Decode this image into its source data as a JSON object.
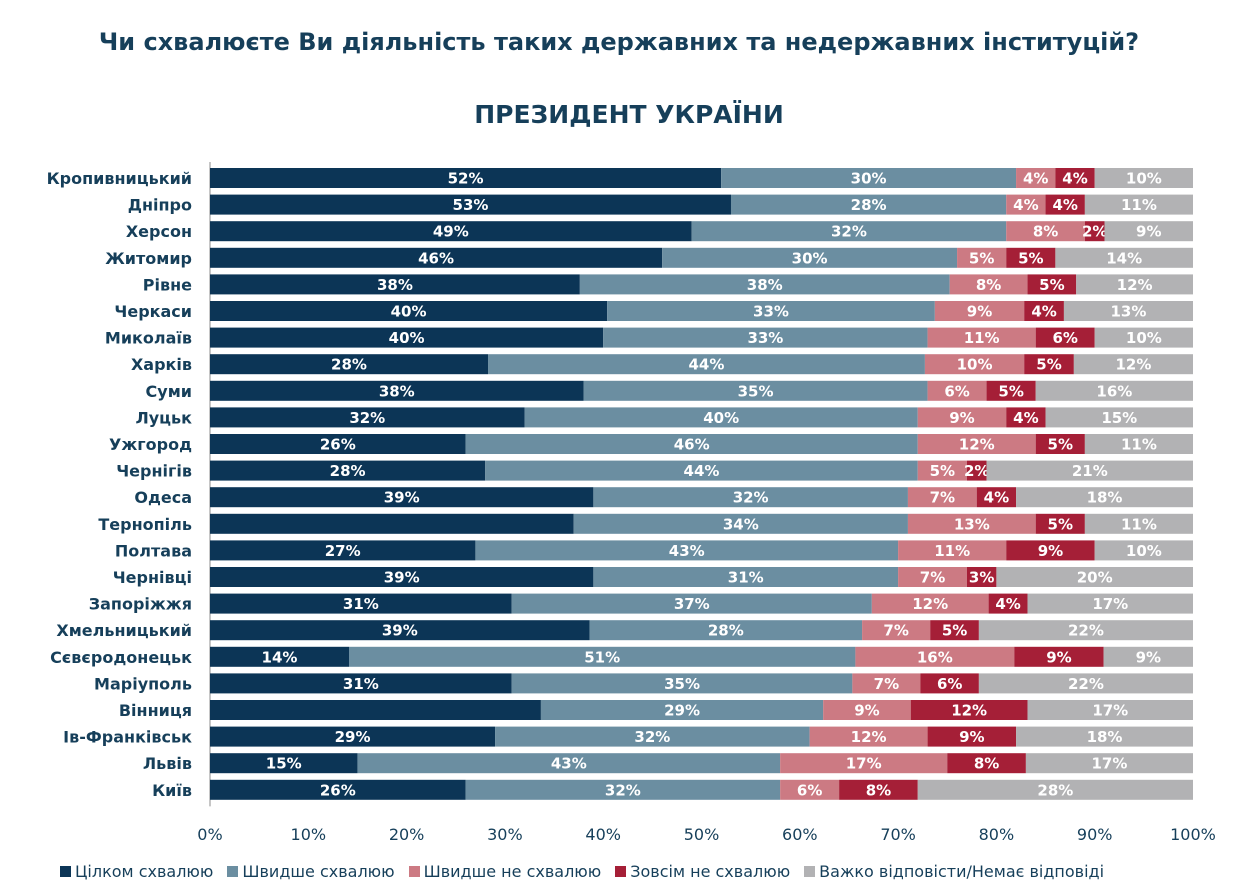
{
  "title": "Чи схвалюєте Ви діяльність таких державних та недержавних інституцій?",
  "subtitle": "ПРЕЗИДЕНТ УКРАЇНИ",
  "colors": {
    "s1": "#0c3556",
    "s2": "#6b8ea1",
    "s3": "#cc7a83",
    "s4": "#a51f37",
    "s5": "#b2b2b4",
    "label": "#163f5a"
  },
  "chart_data": {
    "type": "bar",
    "orientation": "horizontal",
    "stacked": true,
    "title": "ПРЕЗИДЕНТ УКРАЇНИ",
    "xlim": [
      0,
      100
    ],
    "x_ticks": [
      "0%",
      "10%",
      "20%",
      "30%",
      "40%",
      "50%",
      "60%",
      "70%",
      "80%",
      "90%",
      "100%"
    ],
    "categories": [
      "Кропивницький",
      "Дніпро",
      "Херсон",
      "Житомир",
      "Рівне",
      "Черкаси",
      "Миколаїв",
      "Харків",
      "Суми",
      "Луцьк",
      "Ужгород",
      "Чернігів",
      "Одеса",
      "Тернопіль",
      "Полтава",
      "Чернівці",
      "Запоріжжя",
      "Хмельницький",
      "Сєвєродонецьк",
      "Маріуполь",
      "Вінниця",
      "Ів-Франківськ",
      "Львів",
      "Київ"
    ],
    "series": [
      {
        "name": "Цілком схвалюю",
        "values": [
          52,
          53,
          49,
          46,
          38,
          40,
          40,
          28,
          38,
          32,
          26,
          28,
          39,
          37,
          27,
          39,
          31,
          39,
          14,
          31,
          34,
          29,
          15,
          26
        ],
        "labels": [
          "52%",
          "53%",
          "49%",
          "46%",
          "38%",
          "40%",
          "40%",
          "28%",
          "38%",
          "32%",
          "26%",
          "28%",
          "39%",
          "",
          "27%",
          "39%",
          "31%",
          "39%",
          "14%",
          "31%",
          "",
          "29%",
          "15%",
          "26%"
        ]
      },
      {
        "name": "Швидше схвалюю",
        "values": [
          30,
          28,
          32,
          30,
          38,
          33,
          33,
          44,
          35,
          40,
          46,
          44,
          32,
          34,
          43,
          31,
          37,
          28,
          51,
          35,
          29,
          32,
          43,
          32
        ],
        "labels": [
          "30%",
          "28%",
          "32%",
          "30%",
          "38%",
          "33%",
          "33%",
          "44%",
          "35%",
          "40%",
          "46%",
          "44%",
          "32%",
          "34%",
          "43%",
          "31%",
          "37%",
          "28%",
          "51%",
          "35%",
          "29%",
          "32%",
          "43%",
          "32%"
        ]
      },
      {
        "name": "Швидше не схвалюю",
        "values": [
          4,
          4,
          8,
          5,
          8,
          9,
          11,
          10,
          6,
          9,
          12,
          5,
          7,
          13,
          11,
          7,
          12,
          7,
          16,
          7,
          9,
          12,
          17,
          6
        ],
        "labels": [
          "4%",
          "4%",
          "8%",
          "5%",
          "8%",
          "9%",
          "11%",
          "10%",
          "6%",
          "9%",
          "12%",
          "5%",
          "7%",
          "13%",
          "11%",
          "7%",
          "12%",
          "7%",
          "16%",
          "7%",
          "9%",
          "12%",
          "17%",
          "6%"
        ]
      },
      {
        "name": "Зовсім не схвалюю",
        "values": [
          4,
          4,
          2,
          5,
          5,
          4,
          6,
          5,
          5,
          4,
          5,
          2,
          4,
          5,
          9,
          3,
          4,
          5,
          9,
          6,
          12,
          9,
          8,
          8
        ],
        "labels": [
          "4%",
          "4%",
          "2%",
          "5%",
          "5%",
          "4%",
          "6%",
          "5%",
          "5%",
          "4%",
          "5%",
          "2%",
          "4%",
          "5%",
          "9%",
          "3%",
          "4%",
          "5%",
          "9%",
          "6%",
          "12%",
          "9%",
          "8%",
          "8%"
        ]
      },
      {
        "name": "Важко відповісти/Немає відповіді",
        "values": [
          10,
          11,
          9,
          14,
          12,
          13,
          10,
          12,
          16,
          15,
          11,
          21,
          18,
          11,
          10,
          20,
          17,
          22,
          9,
          22,
          17,
          18,
          17,
          28
        ],
        "labels": [
          "10%",
          "11%",
          "9%",
          "14%",
          "12%",
          "13%",
          "10%",
          "12%",
          "16%",
          "15%",
          "11%",
          "21%",
          "18%",
          "11%",
          "10%",
          "20%",
          "17%",
          "22%",
          "9%",
          "22%",
          "17%",
          "18%",
          "17%",
          "28%"
        ]
      }
    ],
    "legend": [
      "Цілком схвалюю",
      "Швидше схвалюю",
      "Швидше не схвалюю",
      "Зовсім не схвалюю",
      "Важко відповісти/Немає відповіді"
    ],
    "legend_position": "bottom"
  }
}
